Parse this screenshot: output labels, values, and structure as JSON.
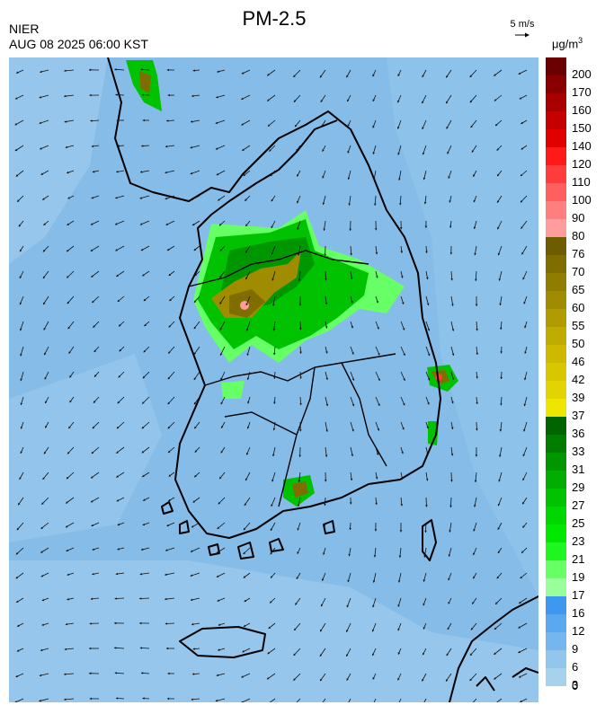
{
  "header": {
    "organization": "NIER",
    "timestamp": "AUG 08 2025 06:00 KST",
    "title": "PM-2.5",
    "wind_reference": "5 m/s",
    "unit_base": "μg/m",
    "unit_exponent": "3"
  },
  "legend": {
    "labels": [
      "200",
      "170",
      "160",
      "150",
      "140",
      "120",
      "110",
      "100",
      "90",
      "80",
      "76",
      "70",
      "65",
      "60",
      "55",
      "50",
      "46",
      "42",
      "39",
      "37",
      "36",
      "33",
      "31",
      "29",
      "27",
      "25",
      "23",
      "21",
      "19",
      "17",
      "16",
      "12",
      "9",
      "6",
      "3",
      "0"
    ],
    "colors": [
      "#6b0000",
      "#8a0000",
      "#a80000",
      "#c40000",
      "#e00000",
      "#ff1a1a",
      "#ff3d3d",
      "#ff5f5f",
      "#ff7f7f",
      "#ff9c9c",
      "#6e5c00",
      "#7f6d00",
      "#8f7d00",
      "#a08c00",
      "#b09c00",
      "#bfac00",
      "#ceb900",
      "#d8c600",
      "#e2d400",
      "#efe600",
      "#006400",
      "#007d00",
      "#009600",
      "#00ad00",
      "#00c200",
      "#00d600",
      "#00e800",
      "#1ff51f",
      "#66ff66",
      "#99ff99",
      "#3e98f0",
      "#5aa8f0",
      "#76b6ee",
      "#92c6ec",
      "#a6d2ec"
    ]
  },
  "map": {
    "background_color": "#86bce8",
    "hotspot_colors": {
      "good_light": "#66ff66",
      "good": "#00c200",
      "good_dark": "#009600",
      "moderate": "#a08c00",
      "moderate_dark": "#7f6d00",
      "unhealthy": "#ff9c9c"
    }
  }
}
